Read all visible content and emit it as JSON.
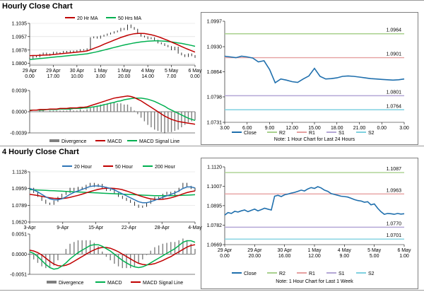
{
  "page": {
    "hourly_title": "Hourly Close Chart",
    "four_hourly_title": "4 Hourly Close Chart"
  },
  "colors": {
    "price": "#000000",
    "ma_red": "#c00000",
    "ma_green": "#00b050",
    "close_blue": "#1f6fad",
    "r2": "#a9d18e",
    "r1": "#e6a0a0",
    "s1": "#b4a7d6",
    "s2": "#7fd1e0",
    "divergence": "#7f7f7f"
  },
  "chart_data": [
    {
      "id": "hourly-price",
      "type": "line",
      "legend": [
        "20 Hr MA",
        "50 Hrs MA"
      ],
      "yticks": [
        "1.1035",
        "1.0957",
        "1.0878",
        "1.0800"
      ],
      "ylim": [
        1.079,
        1.1035
      ],
      "xticks": [
        [
          "29 Apr",
          "0.00"
        ],
        [
          "29 Apr",
          "17.00"
        ],
        [
          "30 Apr",
          "10.00"
        ],
        [
          "1 May",
          "3.00"
        ],
        [
          "1 May",
          "20.00"
        ],
        [
          "4 May",
          "14.00"
        ],
        [
          "5 May",
          "7.00"
        ],
        [
          "6 May",
          "0.00"
        ]
      ],
      "price": [
        1.083,
        1.0845,
        1.0838,
        1.0852,
        1.086,
        1.0848,
        1.0855,
        1.0865,
        1.0858,
        1.0862,
        1.087,
        1.0866,
        1.0872,
        1.0868,
        1.0875,
        1.088,
        1.0878,
        1.0885,
        1.095,
        1.0955,
        1.0948,
        1.096,
        1.0965,
        1.0972,
        1.0978,
        1.0985,
        1.099,
        1.1005,
        1.0998,
        1.1025,
        1.101,
        1.1,
        1.0975,
        1.096,
        1.0955,
        1.0945,
        1.095,
        1.0935,
        1.092,
        1.0915,
        1.0905,
        1.0898,
        1.088,
        1.0895,
        1.086,
        1.085,
        1.084,
        1.0855,
        1.0845,
        1.0835
      ],
      "ma20": [
        1.0845,
        1.0846,
        1.0846,
        1.0847,
        1.0848,
        1.0849,
        1.085,
        1.0852,
        1.0854,
        1.0856,
        1.0858,
        1.086,
        1.0862,
        1.0864,
        1.0866,
        1.0868,
        1.087,
        1.0873,
        1.088,
        1.0888,
        1.0895,
        1.0903,
        1.0912,
        1.092,
        1.0928,
        1.0936,
        1.0944,
        1.0952,
        1.0958,
        1.0965,
        1.097,
        1.0974,
        1.0976,
        1.0976,
        1.0975,
        1.0972,
        1.0968,
        1.0963,
        1.0957,
        1.095,
        1.0942,
        1.0934,
        1.0925,
        1.0917,
        1.0908,
        1.0899,
        1.089,
        1.0882,
        1.0874,
        1.0866
      ],
      "ma50": [
        1.0822,
        1.0824,
        1.0826,
        1.0828,
        1.083,
        1.0832,
        1.0834,
        1.0836,
        1.0838,
        1.084,
        1.0842,
        1.0844,
        1.0846,
        1.0848,
        1.085,
        1.0852,
        1.0854,
        1.0856,
        1.086,
        1.0864,
        1.0868,
        1.0873,
        1.0878,
        1.0883,
        1.0888,
        1.0893,
        1.0898,
        1.0903,
        1.0908,
        1.0912,
        1.0916,
        1.092,
        1.0923,
        1.0926,
        1.0928,
        1.093,
        1.0931,
        1.0932,
        1.0932,
        1.0931,
        1.093,
        1.0928,
        1.0926,
        1.0923,
        1.092,
        1.0917,
        1.0913,
        1.0909,
        1.0905,
        1.09
      ]
    },
    {
      "id": "hourly-macd",
      "type": "line",
      "legend": [
        "Divergence",
        "MACD",
        "MACD Signal Line"
      ],
      "yticks": [
        "0.0039",
        "0.0000",
        "-0.0039"
      ],
      "ylim": [
        -0.0039,
        0.0039
      ],
      "macd": [
        0.0002,
        0.0003,
        0.0003,
        0.0004,
        0.0004,
        0.0004,
        0.0005,
        0.0005,
        0.0005,
        0.0006,
        0.0006,
        0.0006,
        0.0007,
        0.0007,
        0.0007,
        0.0008,
        0.0008,
        0.0009,
        0.0011,
        0.0013,
        0.0015,
        0.0017,
        0.0019,
        0.0021,
        0.0023,
        0.0025,
        0.0026,
        0.0027,
        0.0028,
        0.0029,
        0.0028,
        0.0026,
        0.0023,
        0.002,
        0.0016,
        0.0012,
        0.0008,
        0.0004,
        0.0,
        -0.0004,
        -0.0008,
        -0.0011,
        -0.0014,
        -0.0016,
        -0.0018,
        -0.0019,
        -0.002,
        -0.0021,
        -0.0022,
        -0.0023
      ],
      "signal": [
        0.0003,
        0.0003,
        0.0003,
        0.0003,
        0.0003,
        0.0004,
        0.0004,
        0.0004,
        0.0004,
        0.0005,
        0.0005,
        0.0005,
        0.0005,
        0.0006,
        0.0006,
        0.0006,
        0.0007,
        0.0007,
        0.0008,
        0.0009,
        0.001,
        0.0011,
        0.0013,
        0.0014,
        0.0016,
        0.0017,
        0.0019,
        0.002,
        0.0022,
        0.0023,
        0.0024,
        0.0025,
        0.0025,
        0.0025,
        0.0024,
        0.0023,
        0.0021,
        0.0019,
        0.0016,
        0.0013,
        0.001,
        0.0006,
        0.0003,
        0.0,
        -0.0003,
        -0.0006,
        -0.0009,
        -0.0012,
        -0.0014,
        -0.0016
      ]
    },
    {
      "id": "hourly-levels",
      "type": "line",
      "legend": [
        "Close",
        "R2",
        "R1",
        "S1",
        "S2"
      ],
      "yticks": [
        "1.0997",
        "1.0930",
        "1.0864",
        "1.0798",
        "1.0731"
      ],
      "ylim": [
        1.0731,
        1.0997
      ],
      "xticks": [
        "3.00",
        "6.00",
        "9.00",
        "12.00",
        "15.00",
        "18.00",
        "21.00",
        "0.00",
        "3.00"
      ],
      "levels": {
        "R2": 1.0964,
        "R1": 1.0901,
        "S1": 1.0801,
        "S2": 1.0764
      },
      "level_labels": {
        "R2": "1.0964",
        "R1": "1.0901",
        "S1": "1.0801",
        "S2": "1.0764"
      },
      "close": [
        1.0905,
        1.0903,
        1.0901,
        1.0905,
        1.0903,
        1.09,
        1.089,
        1.0893,
        1.087,
        1.0835,
        1.0845,
        1.0842,
        1.0838,
        1.0836,
        1.0845,
        1.0853,
        1.0873,
        1.0852,
        1.0845,
        1.0846,
        1.0848,
        1.0852,
        1.0853,
        1.0852,
        1.085,
        1.0848,
        1.0846,
        1.0845,
        1.0844,
        1.0843,
        1.0842,
        1.0843,
        1.0845
      ],
      "note": "Note: 1 Hour Chart for Last 24 Hours"
    },
    {
      "id": "four-hourly-price",
      "type": "line",
      "legend": [
        "20 Hour",
        "50 Hour",
        "200 Hour"
      ],
      "yticks": [
        "1.1128",
        "1.0959",
        "1.0789",
        "1.0620"
      ],
      "ylim": [
        1.062,
        1.1128
      ],
      "xticks": [
        "3-Apr",
        "9-Apr",
        "15-Apr",
        "22-Apr",
        "28-Apr",
        "4-May"
      ],
      "price": [
        1.096,
        1.092,
        1.088,
        1.084,
        1.081,
        1.08,
        1.083,
        1.087,
        1.09,
        1.092,
        1.096,
        1.094,
        1.097,
        1.095,
        1.099,
        1.101,
        1.098,
        1.1,
        1.097,
        1.094,
        1.095,
        1.091,
        1.088,
        1.086,
        1.084,
        1.082,
        1.079,
        1.077,
        1.078,
        1.081,
        1.084,
        1.087,
        1.086,
        1.09,
        1.092,
        1.089,
        1.093,
        1.096,
        1.101,
        1.098,
        1.096,
        1.094
      ],
      "ma20": [
        1.096,
        1.0945,
        1.0925,
        1.09,
        1.0875,
        1.0855,
        1.0845,
        1.0845,
        1.0855,
        1.0875,
        1.09,
        1.092,
        1.0935,
        1.095,
        1.0965,
        1.098,
        1.0985,
        1.0985,
        1.098,
        1.097,
        1.096,
        1.0945,
        1.0925,
        1.0905,
        1.0885,
        1.0865,
        1.0845,
        1.0825,
        1.0815,
        1.0815,
        1.0825,
        1.084,
        1.0855,
        1.087,
        1.0885,
        1.09,
        1.0915,
        1.0935,
        1.096,
        1.0975,
        1.0975,
        1.0965
      ],
      "ma50": [
        1.09,
        1.0895,
        1.0888,
        1.088,
        1.0872,
        1.0865,
        1.086,
        1.0858,
        1.0858,
        1.0862,
        1.087,
        1.088,
        1.089,
        1.0902,
        1.0915,
        1.0928,
        1.094,
        1.095,
        1.0958,
        1.0962,
        1.0963,
        1.096,
        1.0955,
        1.0946,
        1.0934,
        1.092,
        1.0905,
        1.089,
        1.0876,
        1.0864,
        1.0855,
        1.085,
        1.0848,
        1.085,
        1.0856,
        1.0865,
        1.0876,
        1.089,
        1.0905,
        1.0918,
        1.0928,
        1.0935
      ],
      "ma200": [
        1.0948,
        1.0946,
        1.0944,
        1.0942,
        1.094,
        1.0938,
        1.0936,
        1.0934,
        1.0932,
        1.093,
        1.0928,
        1.0926,
        1.0924,
        1.0922,
        1.092,
        1.0918,
        1.0916,
        1.0914,
        1.0912,
        1.091,
        1.0908,
        1.0906,
        1.0904,
        1.0902,
        1.09,
        1.0898,
        1.0896,
        1.0894,
        1.0892,
        1.089,
        1.0888,
        1.0887,
        1.0886,
        1.0886,
        1.0886,
        1.0887,
        1.0888,
        1.0889,
        1.089,
        1.0892,
        1.0894,
        1.0896
      ]
    },
    {
      "id": "four-hourly-macd",
      "type": "line",
      "legend": [
        "Divergence",
        "MACD",
        "MACD Signal Line"
      ],
      "yticks": [
        "0.0051",
        "0.0000",
        "-0.0051"
      ],
      "ylim": [
        -0.0051,
        0.0051
      ],
      "macd": [
        0.0006,
        0.0002,
        -0.0006,
        -0.0016,
        -0.0026,
        -0.0034,
        -0.0038,
        -0.0036,
        -0.003,
        -0.0022,
        -0.0012,
        -0.0004,
        0.0004,
        0.001,
        0.0016,
        0.0022,
        0.0024,
        0.0024,
        0.002,
        0.0014,
        0.0008,
        0.0,
        -0.0008,
        -0.0016,
        -0.0022,
        -0.0028,
        -0.0032,
        -0.0034,
        -0.0032,
        -0.0028,
        -0.0022,
        -0.0016,
        -0.001,
        -0.0004,
        0.0002,
        0.0008,
        0.0014,
        0.0022,
        0.003,
        0.0034,
        0.0034,
        0.003
      ],
      "signal": [
        0.001,
        0.0008,
        0.0004,
        -0.0002,
        -0.001,
        -0.0018,
        -0.0025,
        -0.0029,
        -0.003,
        -0.0028,
        -0.0024,
        -0.0018,
        -0.0012,
        -0.0006,
        0.0,
        0.0006,
        0.0011,
        0.0015,
        0.0017,
        0.0017,
        0.0015,
        0.0011,
        0.0006,
        0.0,
        -0.0006,
        -0.0012,
        -0.0018,
        -0.0023,
        -0.0026,
        -0.0027,
        -0.0026,
        -0.0024,
        -0.002,
        -0.0016,
        -0.0011,
        -0.0006,
        0.0,
        0.0006,
        0.0012,
        0.0018,
        0.0022,
        0.0024
      ]
    },
    {
      "id": "four-hourly-levels",
      "type": "line",
      "legend": [
        "Close",
        "R2",
        "R1",
        "S1",
        "S2"
      ],
      "yticks": [
        "1.1120",
        "1.1007",
        "1.0895",
        "1.0782",
        "1.0669"
      ],
      "ylim": [
        1.0669,
        1.112
      ],
      "xticks": [
        [
          "29 Apr",
          "0.00"
        ],
        [
          "29 Apr",
          "20.00"
        ],
        [
          "30 Apr",
          "16.00"
        ],
        [
          "1 May",
          "12.00"
        ],
        [
          "4 May",
          "9.00"
        ],
        [
          "5 May",
          "5.00"
        ],
        [
          "6 May",
          "1.00"
        ]
      ],
      "levels": {
        "R2": 1.1087,
        "R1": 1.0963,
        "S1": 1.077,
        "S2": 1.0701
      },
      "level_labels": {
        "R2": "1.1087",
        "R1": "1.0963",
        "S1": "1.0770",
        "S2": "1.0701"
      },
      "close": [
        1.084,
        1.0855,
        1.085,
        1.0862,
        1.0858,
        1.0865,
        1.087,
        1.086,
        1.0868,
        1.0875,
        1.0865,
        1.0872,
        1.088,
        1.0875,
        1.087,
        1.095,
        1.0955,
        1.0948,
        1.0958,
        1.0962,
        1.0968,
        1.0972,
        1.0978,
        1.0985,
        1.098,
        1.0992,
        1.1,
        1.0995,
        1.1005,
        1.0998,
        1.0985,
        1.0978,
        1.0965,
        1.096,
        1.0955,
        1.095,
        1.0948,
        1.0945,
        1.0938,
        1.093,
        1.0925,
        1.0922,
        1.0915,
        1.0918,
        1.09,
        1.0905,
        1.088,
        1.086,
        1.0845,
        1.085,
        1.0848,
        1.0845,
        1.085,
        1.0846,
        1.0848
      ],
      "note": "Note: 1 Hour Chart for Last 1 Week"
    }
  ]
}
